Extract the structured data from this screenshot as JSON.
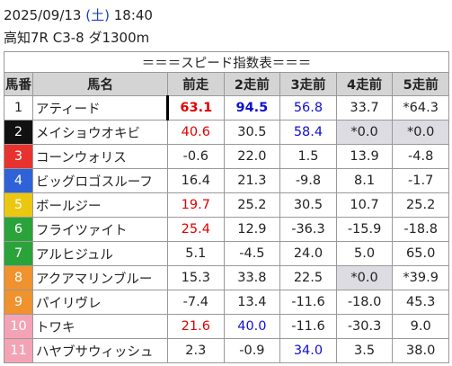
{
  "header": {
    "date": "2025/09/13",
    "weekday": "(土)",
    "weekday_color": "#1a3fd0",
    "time": "18:40",
    "race": "高知7R C3-8 ダ1300m"
  },
  "table": {
    "title": "＝＝＝スピード指数表＝＝＝",
    "columns": [
      "馬番",
      "馬名",
      "前走",
      "2走前",
      "3走前",
      "4走前",
      "5走前"
    ],
    "rows": [
      {
        "number": "1",
        "frame_color": "#ffffff",
        "frame_text_color": "#222222",
        "name": "アティード",
        "cells": [
          {
            "text": "63.1",
            "color": "#e00000",
            "bold": true
          },
          {
            "text": "94.5",
            "color": "#1010d0",
            "bold": true
          },
          {
            "text": "56.8",
            "color": "#1010d0"
          },
          {
            "text": "33.7"
          },
          {
            "text": "*64.3"
          }
        ]
      },
      {
        "number": "2",
        "frame_color": "#111111",
        "frame_text_color": "#ffffff",
        "name": "メイショウオキビ",
        "cells": [
          {
            "text": "40.6",
            "color": "#e00000"
          },
          {
            "text": "30.5"
          },
          {
            "text": "58.4",
            "color": "#1010d0"
          },
          {
            "text": "*0.0",
            "shaded": true
          },
          {
            "text": "*0.0",
            "shaded": true
          }
        ]
      },
      {
        "number": "3",
        "frame_color": "#e8322d",
        "frame_text_color": "#ffffff",
        "name": "コーンウォリス",
        "cells": [
          {
            "text": "-0.6"
          },
          {
            "text": "22.0"
          },
          {
            "text": "1.5"
          },
          {
            "text": "13.9"
          },
          {
            "text": "-4.8"
          }
        ]
      },
      {
        "number": "4",
        "frame_color": "#2f62d6",
        "frame_text_color": "#ffffff",
        "name": "ビッグロゴスルーフ",
        "cells": [
          {
            "text": "16.4"
          },
          {
            "text": "21.3"
          },
          {
            "text": "-9.8"
          },
          {
            "text": "8.1"
          },
          {
            "text": "-1.7"
          }
        ]
      },
      {
        "number": "5",
        "frame_color": "#ecc70f",
        "frame_text_color": "#ffffff",
        "name": "ボールジー",
        "cells": [
          {
            "text": "19.7",
            "color": "#e00000"
          },
          {
            "text": "25.2"
          },
          {
            "text": "30.5"
          },
          {
            "text": "10.7"
          },
          {
            "text": "25.2"
          }
        ]
      },
      {
        "number": "6",
        "frame_color": "#2aa33a",
        "frame_text_color": "#ffffff",
        "name": "フライツァイト",
        "cells": [
          {
            "text": "25.4",
            "color": "#e00000"
          },
          {
            "text": "12.9"
          },
          {
            "text": "-36.3"
          },
          {
            "text": "-15.9"
          },
          {
            "text": "-18.8"
          }
        ]
      },
      {
        "number": "7",
        "frame_color": "#2aa33a",
        "frame_text_color": "#ffffff",
        "name": "アルヒジュル",
        "cells": [
          {
            "text": "5.1"
          },
          {
            "text": "-4.5"
          },
          {
            "text": "24.0"
          },
          {
            "text": "5.0"
          },
          {
            "text": "65.0"
          }
        ]
      },
      {
        "number": "8",
        "frame_color": "#f0922d",
        "frame_text_color": "#ffffff",
        "name": "アクアマリンブルー",
        "cells": [
          {
            "text": "15.3"
          },
          {
            "text": "33.8"
          },
          {
            "text": "22.5"
          },
          {
            "text": "*0.0",
            "shaded": true
          },
          {
            "text": "*39.9"
          }
        ]
      },
      {
        "number": "9",
        "frame_color": "#f0922d",
        "frame_text_color": "#ffffff",
        "name": "パイリヴレ",
        "cells": [
          {
            "text": "-7.4"
          },
          {
            "text": "13.4"
          },
          {
            "text": "-11.6"
          },
          {
            "text": "-18.0"
          },
          {
            "text": "45.3"
          }
        ]
      },
      {
        "number": "10",
        "frame_color": "#f4a3b4",
        "frame_text_color": "#ffffff",
        "name": "トワキ",
        "cells": [
          {
            "text": "21.6",
            "color": "#e00000"
          },
          {
            "text": "40.0",
            "color": "#1010d0"
          },
          {
            "text": "-11.6"
          },
          {
            "text": "-30.3"
          },
          {
            "text": "9.0"
          }
        ]
      },
      {
        "number": "11",
        "frame_color": "#f4a3b4",
        "frame_text_color": "#ffffff",
        "name": "ハヤブサウィッシュ",
        "cells": [
          {
            "text": "2.3"
          },
          {
            "text": "-0.9"
          },
          {
            "text": "34.0",
            "color": "#1010d0"
          },
          {
            "text": "3.5"
          },
          {
            "text": "38.0"
          }
        ]
      }
    ]
  }
}
